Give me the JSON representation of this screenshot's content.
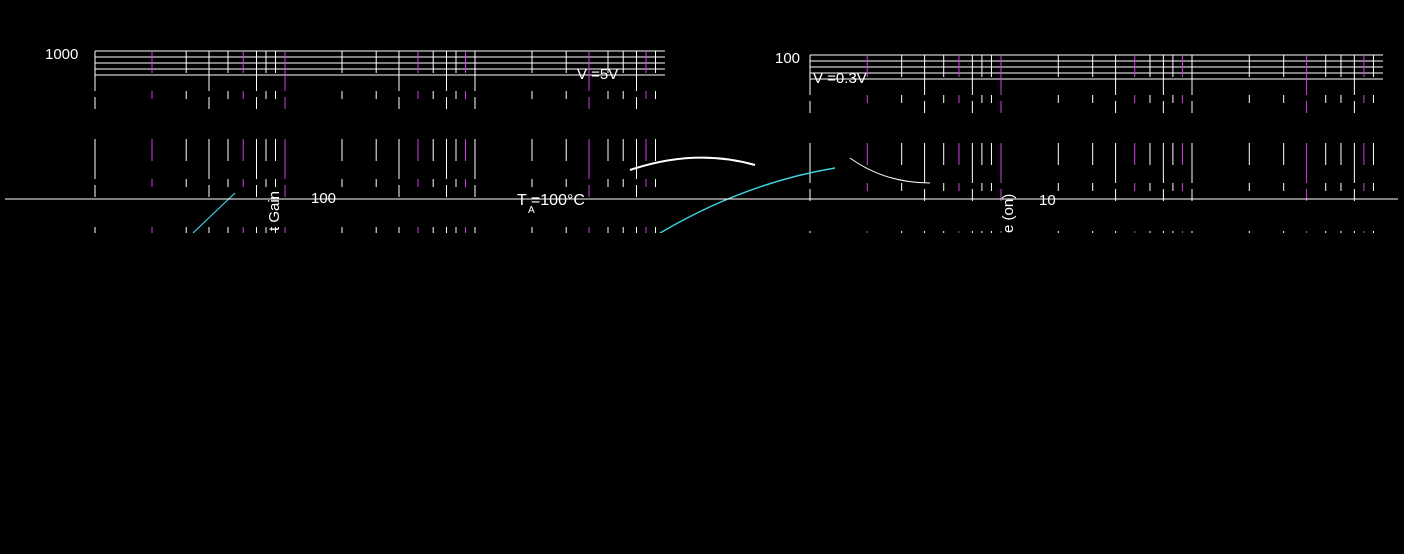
{
  "chart_data": [
    {
      "type": "line",
      "ytick_top": "1000",
      "ytick_mid": "100",
      "condition": "V  =5V",
      "annotation": "T  =100°C",
      "annotation_sub": "A",
      "ylabel_fragment": "t Gain",
      "grid": true,
      "yscale": "log"
    },
    {
      "type": "line",
      "ytick_top": "100",
      "ytick_mid": "10",
      "condition": "V  =0.3V",
      "ylabel_fragment": "e (on)",
      "grid": true,
      "yscale": "log"
    }
  ],
  "colors": {
    "background": "#000000",
    "grid": "#ffffff",
    "accent_magenta": "#d040e0",
    "accent_cyan": "#40d0e0"
  }
}
